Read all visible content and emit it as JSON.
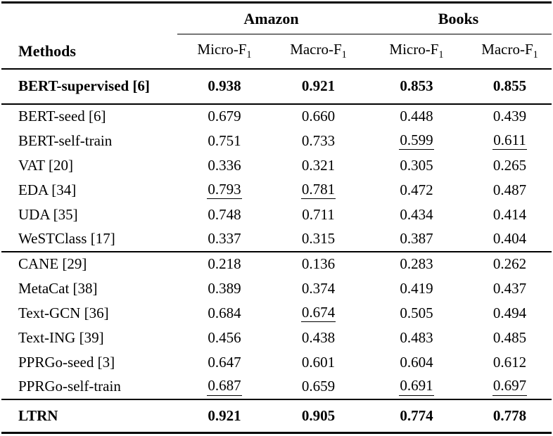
{
  "page": {
    "background": "#ffffff",
    "text_color": "#000000",
    "rule_color": "#000000"
  },
  "table": {
    "header": {
      "methods_label": "Methods",
      "groups": [
        {
          "label": "Amazon"
        },
        {
          "label": "Books"
        }
      ],
      "metric_headers": [
        {
          "name": "Micro-F",
          "sub": "1"
        },
        {
          "name": "Macro-F",
          "sub": "1"
        },
        {
          "name": "Micro-F",
          "sub": "1"
        },
        {
          "name": "Macro-F",
          "sub": "1"
        }
      ]
    },
    "sections": [
      {
        "rows": [
          {
            "method": "BERT-supervised [6]",
            "values": [
              "0.938",
              "0.921",
              "0.853",
              "0.855"
            ],
            "emphasis": "bold"
          }
        ]
      },
      {
        "rows": [
          {
            "method": "BERT-seed [6]",
            "values": [
              "0.679",
              "0.660",
              "0.448",
              "0.439"
            ]
          },
          {
            "method": "BERT-self-train",
            "values": [
              "0.751",
              "0.733",
              "0.599",
              "0.611"
            ],
            "underlined_cols": [
              2,
              3
            ]
          },
          {
            "method": "VAT [20]",
            "values": [
              "0.336",
              "0.321",
              "0.305",
              "0.265"
            ]
          },
          {
            "method": "EDA [34]",
            "values": [
              "0.793",
              "0.781",
              "0.472",
              "0.487"
            ],
            "underlined_cols": [
              0,
              1
            ]
          },
          {
            "method": "UDA [35]",
            "values": [
              "0.748",
              "0.711",
              "0.434",
              "0.414"
            ]
          },
          {
            "method": "WeSTClass [17]",
            "values": [
              "0.337",
              "0.315",
              "0.387",
              "0.404"
            ]
          }
        ]
      },
      {
        "rows": [
          {
            "method": "CANE [29]",
            "values": [
              "0.218",
              "0.136",
              "0.283",
              "0.262"
            ]
          },
          {
            "method": "MetaCat [38]",
            "values": [
              "0.389",
              "0.374",
              "0.419",
              "0.437"
            ]
          },
          {
            "method": "Text-GCN [36]",
            "values": [
              "0.684",
              "0.674",
              "0.505",
              "0.494"
            ],
            "underlined_cols": [
              1
            ]
          },
          {
            "method": "Text-ING [39]",
            "values": [
              "0.456",
              "0.438",
              "0.483",
              "0.485"
            ]
          },
          {
            "method": "PPRGo-seed [3]",
            "values": [
              "0.647",
              "0.601",
              "0.604",
              "0.612"
            ]
          },
          {
            "method": "PPRGo-self-train",
            "values": [
              "0.687",
              "0.659",
              "0.691",
              "0.697"
            ],
            "underlined_cols": [
              0,
              2,
              3
            ]
          }
        ]
      },
      {
        "rows": [
          {
            "method": "LTRN",
            "values": [
              "0.921",
              "0.905",
              "0.774",
              "0.778"
            ],
            "emphasis": "bold"
          }
        ]
      }
    ]
  }
}
